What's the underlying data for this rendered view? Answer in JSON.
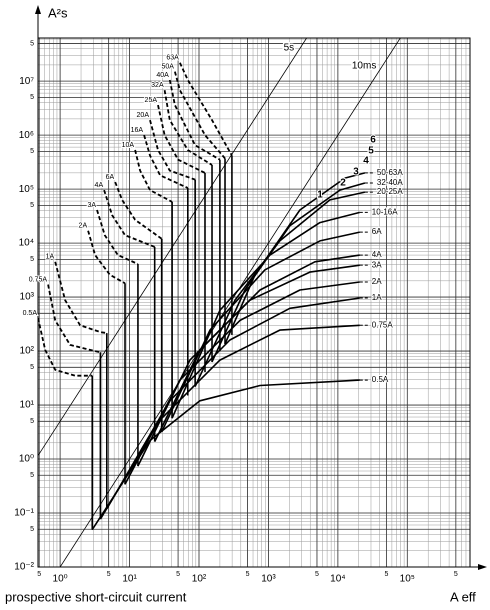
{
  "chart_data": {
    "type": "line",
    "y_axis_label": "A²s",
    "x_axis_label": "A eff",
    "x_caption": "prospective short-circuit current",
    "log_x": true,
    "log_y": true,
    "grid": true,
    "xlim": [
      0.48,
      800000
    ],
    "ylim": [
      0.01,
      63000000
    ],
    "xticks": [
      {
        "value": 0.5,
        "label": "5"
      },
      {
        "value": 1,
        "label": "10⁰"
      },
      {
        "value": 5,
        "label": "5"
      },
      {
        "value": 10,
        "label": "10¹"
      },
      {
        "value": 50,
        "label": "5"
      },
      {
        "value": 100,
        "label": "10²"
      },
      {
        "value": 500,
        "label": "5"
      },
      {
        "value": 1000,
        "label": "10³"
      },
      {
        "value": 5000,
        "label": "5"
      },
      {
        "value": 10000,
        "label": "10⁴"
      },
      {
        "value": 50000,
        "label": "5"
      },
      {
        "value": 100000,
        "label": "10⁵"
      },
      {
        "value": 500000,
        "label": "5"
      }
    ],
    "yticks": [
      {
        "value": 0.01,
        "label": "10⁻²"
      },
      {
        "value": 0.05,
        "label": "5"
      },
      {
        "value": 0.1,
        "label": "10⁻¹"
      },
      {
        "value": 0.5,
        "label": "5"
      },
      {
        "value": 1,
        "label": "10⁰"
      },
      {
        "value": 5,
        "label": "5"
      },
      {
        "value": 10,
        "label": "10¹"
      },
      {
        "value": 50,
        "label": "5"
      },
      {
        "value": 100,
        "label": "10²"
      },
      {
        "value": 500,
        "label": "5"
      },
      {
        "value": 1000,
        "label": "10³"
      },
      {
        "value": 5000,
        "label": "5"
      },
      {
        "value": 10000,
        "label": "10⁴"
      },
      {
        "value": 50000,
        "label": "5"
      },
      {
        "value": 100000,
        "label": "10⁵"
      },
      {
        "value": 500000,
        "label": "5"
      },
      {
        "value": 1000000,
        "label": "10⁶"
      },
      {
        "value": 5000000,
        "label": "5"
      },
      {
        "value": 10000000,
        "label": "10⁷"
      },
      {
        "value": 50000000,
        "label": "5"
      }
    ],
    "reference_lines": [
      {
        "label": "5s",
        "seconds": 5
      },
      {
        "label": "10ms",
        "seconds": 0.01
      }
    ],
    "pre_arcing_series": [
      {
        "name": "0.5A",
        "x": [
          0.48,
          0.61,
          0.85,
          1.64,
          2.9
        ],
        "values": [
          410,
          105,
          45,
          35,
          35
        ],
        "fall_to": 0.049
      },
      {
        "name": "0.75A",
        "x": [
          0.67,
          0.85,
          1.39,
          2.7,
          3.8
        ],
        "values": [
          1700,
          370,
          130,
          105,
          95
        ],
        "fall_to": 0.077
      },
      {
        "name": "1A",
        "x": [
          0.85,
          1.18,
          1.94,
          3.8,
          4.7
        ],
        "values": [
          4500,
          880,
          300,
          225,
          215
        ],
        "fall_to": 0.12
      },
      {
        "name": "2A",
        "x": [
          2.53,
          3.19,
          5.2,
          8.6
        ],
        "values": [
          17000,
          6000,
          2600,
          1800
        ],
        "fall_to": 0.34
      },
      {
        "name": "3A",
        "x": [
          3.4,
          4.4,
          6.8,
          13.2
        ],
        "values": [
          41000,
          14000,
          6000,
          4100
        ],
        "fall_to": 0.74
      },
      {
        "name": "4A",
        "x": [
          4.3,
          5.6,
          8.6,
          23
        ],
        "values": [
          96000,
          33000,
          14000,
          8500
        ],
        "fall_to": 2.1
      },
      {
        "name": "6A",
        "x": [
          6.2,
          7.8,
          12,
          29
        ],
        "values": [
          135000,
          63000,
          27000,
          12000
        ],
        "fall_to": 3.2
      },
      {
        "name": "10A",
        "x": [
          12,
          14.2,
          19.7,
          41
        ],
        "values": [
          530000,
          220000,
          96000,
          58000
        ],
        "fall_to": 5.7
      },
      {
        "name": "16A",
        "x": [
          16.2,
          19.7,
          27.5,
          69
        ],
        "values": [
          1000000,
          420000,
          180000,
          105000
        ],
        "fall_to": 15
      },
      {
        "name": "20A",
        "x": [
          19.7,
          25.7,
          38,
          88
        ],
        "values": [
          1900000,
          530000,
          220000,
          150000
        ],
        "fall_to": 22
      },
      {
        "name": "25A",
        "x": [
          25.7,
          32,
          50,
          122
        ],
        "values": [
          3600000,
          1000000,
          350000,
          200000
        ],
        "fall_to": 41
      },
      {
        "name": "32A",
        "x": [
          32,
          38,
          69,
          154
        ],
        "values": [
          6800000,
          1900000,
          530000,
          280000
        ],
        "fall_to": 63
      },
      {
        "name": "40A",
        "x": [
          38,
          45,
          88,
          200
        ],
        "values": [
          10500000,
          3600000,
          650000,
          350000
        ],
        "fall_to": 100
      },
      {
        "name": "50A",
        "x": [
          45,
          53,
          122,
          237
        ],
        "values": [
          15000000,
          6800000,
          1000000,
          370000
        ],
        "fall_to": 135
      },
      {
        "name": "63A",
        "x": [
          53,
          69,
          154,
          298
        ],
        "values": [
          22000000,
          10500000,
          1900000,
          420000
        ],
        "fall_to": 200
      }
    ],
    "operating_series": [
      {
        "name": "50-63A",
        "x": [
          237,
          640,
          2840,
          12600,
          24500
        ],
        "values": [
          135,
          2600,
          41000,
          160000,
          200000
        ]
      },
      {
        "name": "32-40A",
        "x": [
          154,
          459,
          2040,
          10700,
          24500
        ],
        "values": [
          63,
          1350,
          21000,
          96000,
          130000
        ]
      },
      {
        "name": "20-25A",
        "x": [
          88,
          330,
          1460,
          7670,
          24500
        ],
        "values": [
          22,
          880,
          11000,
          63000,
          88000
        ]
      },
      {
        "name": "10-16A",
        "x": [
          41,
          200,
          1050,
          5510,
          20700
        ],
        "values": [
          5.7,
          570,
          6000,
          24000,
          37000
        ]
      },
      {
        "name": "6A",
        "x": [
          29,
          144,
          891,
          5510,
          20700
        ],
        "values": [
          3.2,
          245,
          3200,
          11000,
          16000
        ]
      },
      {
        "name": "4A",
        "x": [
          23,
          103,
          755,
          4670,
          20700
        ],
        "values": [
          2.1,
          105,
          1350,
          4500,
          6000
        ]
      },
      {
        "name": "3A",
        "x": [
          13.2,
          74,
          542,
          3960,
          20700
        ],
        "values": [
          0.74,
          68,
          880,
          2900,
          3900
        ]
      },
      {
        "name": "2A",
        "x": [
          8.6,
          53,
          389,
          2840,
          20700
        ],
        "values": [
          0.34,
          29,
          370,
          1350,
          1900
        ]
      },
      {
        "name": "1A",
        "x": [
          4.7,
          38,
          279,
          2040,
          20700
        ],
        "values": [
          0.12,
          12,
          160,
          620,
          960
        ]
      },
      {
        "name": "0.75A",
        "x": [
          3.8,
          27.5,
          200,
          1460,
          20700
        ],
        "values": [
          0.077,
          5.3,
          68,
          245,
          300
        ]
      },
      {
        "name": "0.5A",
        "x": [
          2.9,
          19.7,
          103,
          755,
          20700
        ],
        "values": [
          0.049,
          2.2,
          12,
          23,
          29
        ]
      }
    ],
    "group_labels": [
      "1",
      "2",
      "3",
      "4",
      "5",
      "6"
    ]
  }
}
